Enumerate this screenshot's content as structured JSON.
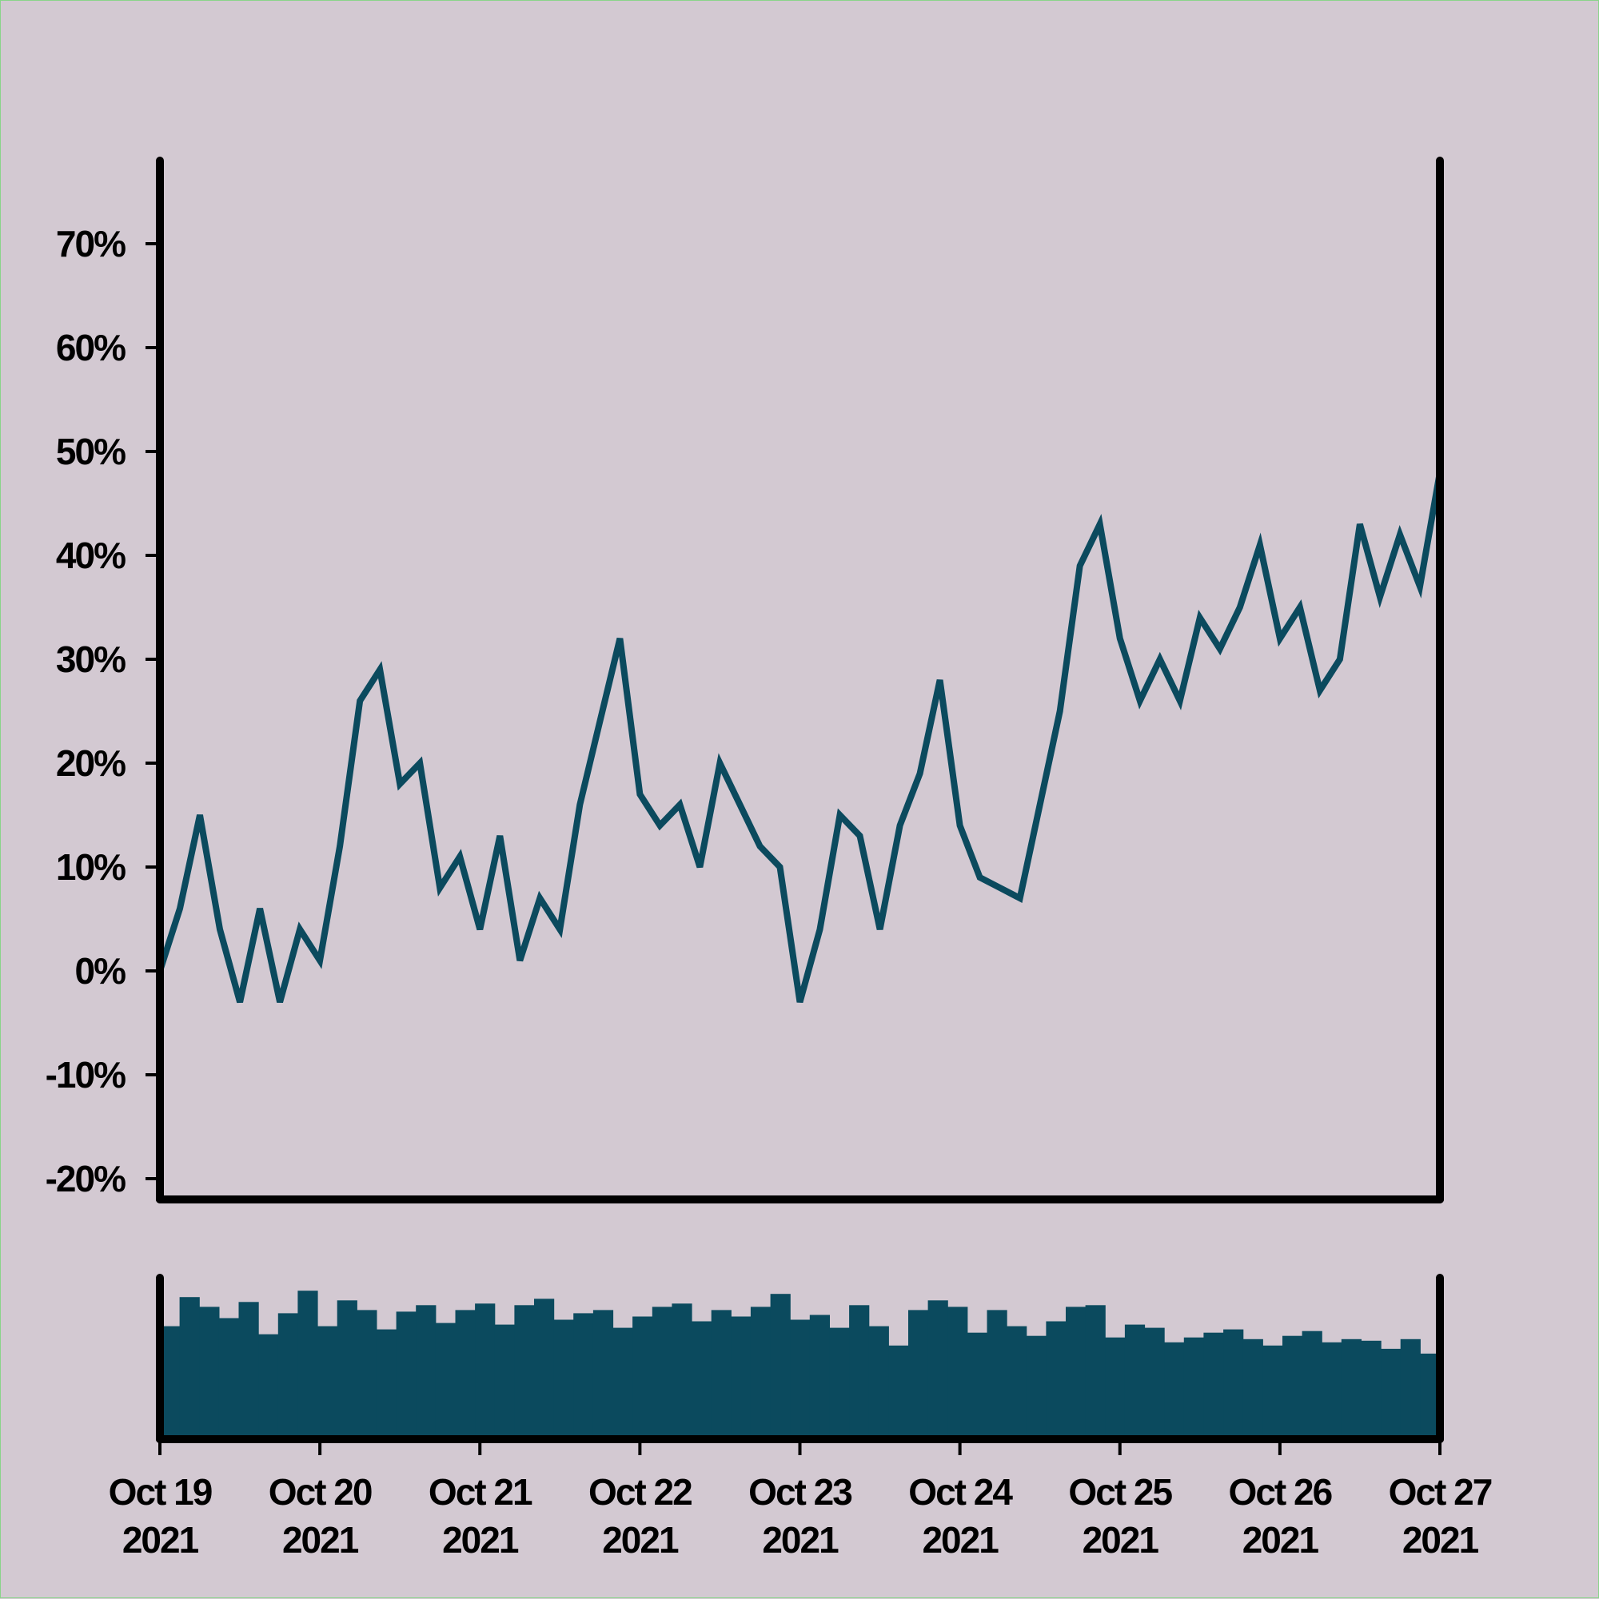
{
  "chart_data": {
    "type": "line",
    "y_axis": {
      "ticks": [
        -20,
        -10,
        0,
        10,
        20,
        30,
        40,
        50,
        60,
        70
      ],
      "tick_labels": [
        "-20%",
        "-10%",
        "0%",
        "10%",
        "20%",
        "30%",
        "40%",
        "50%",
        "60%",
        "70%"
      ],
      "ylim": [
        -22,
        78
      ]
    },
    "x_axis": {
      "ticks": [
        "2021-10-19",
        "2021-10-20",
        "2021-10-21",
        "2021-10-22",
        "2021-10-23",
        "2021-10-24",
        "2021-10-25",
        "2021-10-26",
        "2021-10-27"
      ],
      "tick_labels": [
        {
          "line1": "Oct 19",
          "line2": "2021"
        },
        {
          "line1": "Oct 20",
          "line2": "2021"
        },
        {
          "line1": "Oct 21",
          "line2": "2021"
        },
        {
          "line1": "Oct 22",
          "line2": "2021"
        },
        {
          "line1": "Oct 23",
          "line2": "2021"
        },
        {
          "line1": "Oct 24",
          "line2": "2021"
        },
        {
          "line1": "Oct 25",
          "line2": "2021"
        },
        {
          "line1": "Oct 26",
          "line2": "2021"
        },
        {
          "line1": "Oct 27",
          "line2": "2021"
        }
      ]
    },
    "colors": {
      "series": "#0b4a5e",
      "background": "#d3c9d2",
      "axes": "#000000"
    },
    "series": [
      {
        "type": "line",
        "x": [
          "2021-10-19 00:00",
          "2021-10-19 03:00",
          "2021-10-19 06:00",
          "2021-10-19 09:00",
          "2021-10-19 12:00",
          "2021-10-19 15:00",
          "2021-10-19 18:00",
          "2021-10-19 21:00",
          "2021-10-20 00:00",
          "2021-10-20 03:00",
          "2021-10-20 06:00",
          "2021-10-20 09:00",
          "2021-10-20 12:00",
          "2021-10-20 15:00",
          "2021-10-20 18:00",
          "2021-10-20 21:00",
          "2021-10-21 00:00",
          "2021-10-21 03:00",
          "2021-10-21 06:00",
          "2021-10-21 09:00",
          "2021-10-21 12:00",
          "2021-10-21 15:00",
          "2021-10-21 18:00",
          "2021-10-21 21:00",
          "2021-10-22 00:00",
          "2021-10-22 03:00",
          "2021-10-22 06:00",
          "2021-10-22 09:00",
          "2021-10-22 12:00",
          "2021-10-22 15:00",
          "2021-10-22 18:00",
          "2021-10-22 21:00",
          "2021-10-23 00:00",
          "2021-10-23 03:00",
          "2021-10-23 06:00",
          "2021-10-23 09:00",
          "2021-10-23 12:00",
          "2021-10-23 15:00",
          "2021-10-23 18:00",
          "2021-10-23 21:00",
          "2021-10-24 00:00",
          "2021-10-24 03:00",
          "2021-10-24 06:00",
          "2021-10-24 09:00",
          "2021-10-24 12:00",
          "2021-10-24 15:00",
          "2021-10-24 18:00",
          "2021-10-24 21:00",
          "2021-10-25 00:00",
          "2021-10-25 03:00",
          "2021-10-25 06:00",
          "2021-10-25 09:00",
          "2021-10-25 12:00",
          "2021-10-25 15:00",
          "2021-10-25 18:00",
          "2021-10-25 21:00",
          "2021-10-26 00:00",
          "2021-10-26 03:00",
          "2021-10-26 06:00",
          "2021-10-26 09:00",
          "2021-10-26 12:00",
          "2021-10-26 15:00",
          "2021-10-26 18:00",
          "2021-10-26 21:00",
          "2021-10-27 00:00"
        ],
        "y": [
          0,
          6,
          15,
          4,
          -3,
          6,
          -3,
          4,
          1,
          12,
          26,
          29,
          18,
          20,
          8,
          11,
          4,
          13,
          1,
          7,
          4,
          16,
          24,
          32,
          17,
          14,
          16,
          10,
          20,
          16,
          12,
          10,
          -3,
          4,
          15,
          13,
          4,
          14,
          19,
          28,
          14,
          9,
          8,
          7,
          16,
          25,
          39,
          43,
          32,
          26,
          30,
          26,
          34,
          31,
          35,
          41,
          32,
          35,
          27,
          30,
          43,
          36,
          42,
          37,
          48
        ]
      },
      {
        "type": "bar",
        "ylim": [
          0,
          100
        ],
        "values": [
          70,
          88,
          82,
          75,
          85,
          65,
          78,
          92,
          70,
          86,
          80,
          68,
          79,
          83,
          72,
          80,
          84,
          71,
          83,
          87,
          74,
          78,
          80,
          69,
          76,
          82,
          84,
          73,
          80,
          76,
          82,
          90,
          74,
          77,
          69,
          83,
          70,
          58,
          80,
          86,
          82,
          66,
          80,
          70,
          64,
          73,
          82,
          83,
          63,
          71,
          69,
          60,
          63,
          66,
          68,
          62,
          58,
          64,
          67,
          60,
          62,
          61,
          56,
          62,
          53
        ]
      }
    ]
  }
}
